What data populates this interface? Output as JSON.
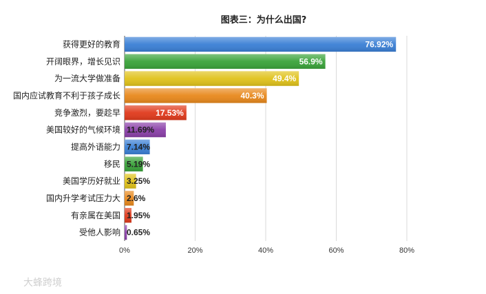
{
  "chart_data": {
    "type": "bar",
    "orientation": "horizontal",
    "title": "图表三：为什么出国?",
    "categories": [
      "获得更好的教育",
      "开阔眼界，增长见识",
      "为一流大学做准备",
      "国内应试教育不利于孩子成长",
      "竞争激烈，要趁早",
      "美国较好的气候环境",
      "提高外语能力",
      "移民",
      "美国学历好就业",
      "国内升学考试压力大",
      "有亲属在美国",
      "受他人影响"
    ],
    "values": [
      76.92,
      56.9,
      49.4,
      40.3,
      17.53,
      11.69,
      7.14,
      5.19,
      3.25,
      2.6,
      1.95,
      0.65
    ],
    "value_labels": [
      "76.92%",
      "56.9%",
      "49.4%",
      "40.3%",
      "17.53%",
      "11.69%",
      "7.14%",
      "5.19%",
      "3.25%",
      "2.6%",
      "1.95%",
      "0.65%"
    ],
    "xlim": [
      0,
      80
    ],
    "xticks": [
      0,
      20,
      40,
      60,
      80
    ],
    "xtick_labels": [
      "0%",
      "20%",
      "40%",
      "60%",
      "80%"
    ],
    "grid": true,
    "bar_colors": [
      "#3a7fd5",
      "#3aa33a",
      "#e0c21a",
      "#e8881c",
      "#e03a1c",
      "#8a3fa8",
      "#3a7fd5",
      "#3aa33a",
      "#e0c21a",
      "#e8881c",
      "#e03a1c",
      "#8a3fa8"
    ]
  },
  "watermark": "大蜂跨境"
}
